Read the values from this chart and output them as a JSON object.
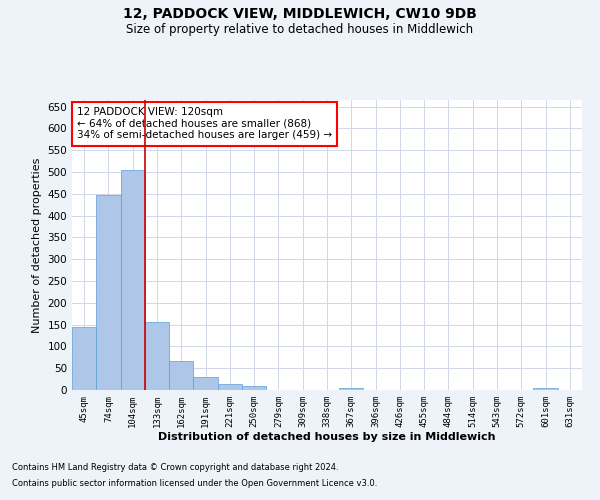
{
  "title1": "12, PADDOCK VIEW, MIDDLEWICH, CW10 9DB",
  "title2": "Size of property relative to detached houses in Middlewich",
  "xlabel": "Distribution of detached houses by size in Middlewich",
  "ylabel": "Number of detached properties",
  "footer1": "Contains HM Land Registry data © Crown copyright and database right 2024.",
  "footer2": "Contains public sector information licensed under the Open Government Licence v3.0.",
  "annotation_line1": "12 PADDOCK VIEW: 120sqm",
  "annotation_line2": "← 64% of detached houses are smaller (868)",
  "annotation_line3": "34% of semi-detached houses are larger (459) →",
  "bar_color": "#aec6e8",
  "bar_edge_color": "#5a9fd4",
  "grid_color": "#d0d8e8",
  "highlight_line_color": "#cc0000",
  "categories": [
    "45sqm",
    "74sqm",
    "104sqm",
    "133sqm",
    "162sqm",
    "191sqm",
    "221sqm",
    "250sqm",
    "279sqm",
    "309sqm",
    "338sqm",
    "367sqm",
    "396sqm",
    "426sqm",
    "455sqm",
    "484sqm",
    "514sqm",
    "543sqm",
    "572sqm",
    "601sqm",
    "631sqm"
  ],
  "values": [
    145,
    447,
    505,
    157,
    66,
    30,
    13,
    9,
    0,
    0,
    0,
    5,
    0,
    0,
    0,
    0,
    0,
    0,
    0,
    5,
    0
  ],
  "ylim": [
    0,
    665
  ],
  "yticks": [
    0,
    50,
    100,
    150,
    200,
    250,
    300,
    350,
    400,
    450,
    500,
    550,
    600,
    650
  ],
  "bg_color": "#eef2f9",
  "plot_bg_color": "#ffffff"
}
